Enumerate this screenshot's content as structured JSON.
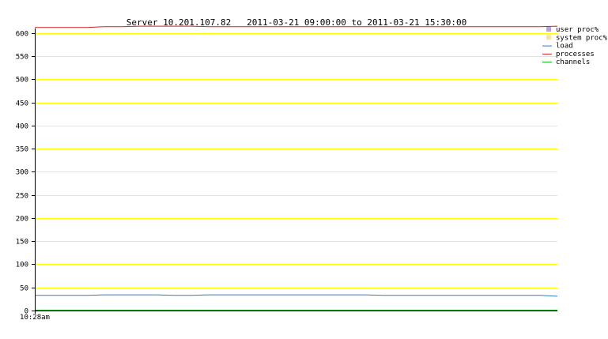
{
  "chart_data": {
    "type": "line",
    "title": "Server 10.201.107.82   2011-03-21 09:00:00 to 2011-03-21 15:30:00",
    "xlabel": "",
    "ylabel": "",
    "x_tick_labels": [
      "10:28am"
    ],
    "y_ticks": [
      0,
      50,
      100,
      150,
      200,
      250,
      300,
      350,
      400,
      450,
      500,
      550,
      600
    ],
    "ylim": [
      0,
      610
    ],
    "grid": true,
    "legend_position": "top-right",
    "series": [
      {
        "name": "user proc%",
        "color": "#c0a0d8",
        "marker": "square",
        "values": []
      },
      {
        "name": "system proc%",
        "color": "#f8e4a0",
        "marker": "square",
        "values": []
      },
      {
        "name": "load",
        "color": "#3377cc",
        "marker": "line",
        "values": [
          33,
          33,
          33,
          33,
          34,
          34,
          34,
          34,
          33,
          33,
          34,
          34,
          34,
          34,
          34,
          34,
          34,
          34,
          34,
          34,
          33,
          33,
          33,
          33,
          33,
          33,
          33,
          33,
          33,
          33,
          31
        ]
      },
      {
        "name": "processes",
        "color": "#cc2222",
        "marker": "line",
        "values": [
          612,
          612,
          612,
          612,
          614,
          614,
          615,
          615,
          615,
          615,
          614,
          614,
          614,
          614,
          614,
          614,
          614,
          614,
          614,
          614,
          614,
          614,
          614,
          614,
          614,
          614,
          614,
          614,
          614,
          614,
          615
        ]
      },
      {
        "name": "channels",
        "color": "#00aa00",
        "marker": "line",
        "values": [
          0,
          0,
          0,
          0,
          0,
          0,
          0,
          0,
          0,
          0,
          0,
          0,
          0,
          0,
          0,
          0,
          0,
          0,
          0,
          0,
          0,
          0,
          0,
          0,
          0,
          0,
          0,
          0,
          0,
          0,
          0
        ]
      }
    ],
    "colors": {
      "grid": "#ffff00",
      "axis": "#000000",
      "background": "#ffffff"
    }
  }
}
